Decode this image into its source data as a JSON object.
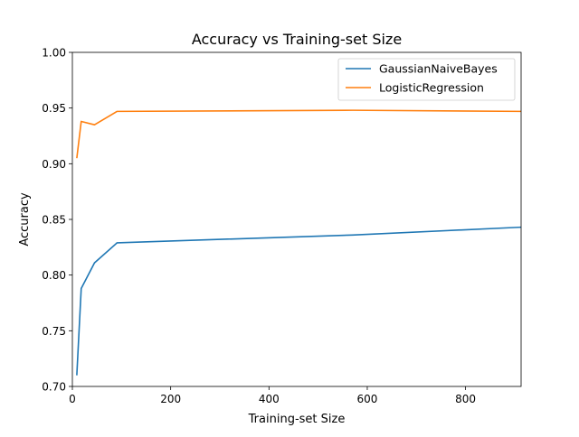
{
  "chart_data": {
    "type": "line",
    "title": "Accuracy vs Training-set Size",
    "xlabel": "Training-set Size",
    "ylabel": "Accuracy",
    "xlim": [
      0,
      913
    ],
    "ylim": [
      0.7,
      1.0
    ],
    "xticks": [
      0,
      200,
      400,
      600,
      800
    ],
    "xtick_labels": [
      "0",
      "200",
      "400",
      "600",
      "800"
    ],
    "yticks": [
      0.7,
      0.75,
      0.8,
      0.85,
      0.9,
      0.95,
      1.0
    ],
    "ytick_labels": [
      "0.70",
      "0.75",
      "0.80",
      "0.85",
      "0.90",
      "0.95",
      "1.00"
    ],
    "grid": false,
    "legend_position": "top-right",
    "series": [
      {
        "name": "GaussianNaiveBayes",
        "color": "#1f77b4",
        "x": [
          9,
          18,
          45,
          91,
          570,
          913
        ],
        "y": [
          0.71,
          0.788,
          0.811,
          0.829,
          0.836,
          0.843
        ]
      },
      {
        "name": "LogisticRegression",
        "color": "#ff7f0e",
        "x": [
          9,
          18,
          45,
          91,
          570,
          913
        ],
        "y": [
          0.905,
          0.938,
          0.935,
          0.947,
          0.948,
          0.947
        ]
      }
    ]
  }
}
